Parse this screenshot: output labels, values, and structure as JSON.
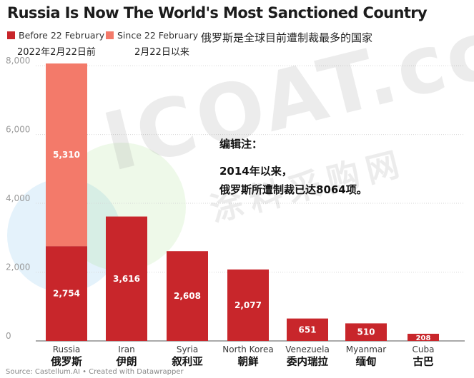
{
  "title": "Russia Is Now The World's Most Sanctioned Country",
  "cn_title": "俄罗斯是全球目前遭制裁最多的国家",
  "legend": [
    {
      "label": "Before 22 February",
      "sublabel": "2022年2月22日前",
      "color": "#c8262b"
    },
    {
      "label": "Since 22 February",
      "sublabel": "2月22日以来",
      "color": "#f37a6a"
    }
  ],
  "note": {
    "heading": "编辑注：",
    "line1": "2014年以来，",
    "line2": "俄罗斯所遭制裁已达8064项。"
  },
  "watermark": {
    "text": "ICOAT.cc",
    "cn": "涂料采购网"
  },
  "source": "Source: Castellum.AI • Created with Datawrapper",
  "chart_data": {
    "type": "bar",
    "stacked": true,
    "categories": [
      "Russia",
      "Iran",
      "Syria",
      "North Korea",
      "Venezuela",
      "Myanmar",
      "Cuba"
    ],
    "categories_cn": [
      "俄罗斯",
      "伊朗",
      "叙利亚",
      "朝鲜",
      "委内瑞拉",
      "缅甸",
      "古巴"
    ],
    "series": [
      {
        "name": "Before 22 February",
        "values": [
          2754,
          3616,
          2608,
          2077,
          651,
          510,
          208
        ],
        "color": "#c8262b"
      },
      {
        "name": "Since 22 February",
        "values": [
          5310,
          0,
          0,
          0,
          0,
          0,
          0
        ],
        "color": "#f37a6a"
      }
    ],
    "data_labels": [
      [
        "2,754",
        "3,616",
        "2,608",
        "2,077",
        "651",
        "510",
        "208"
      ],
      [
        "5,310",
        "",
        "",
        "",
        "",
        "",
        ""
      ]
    ],
    "yticks": [
      0,
      2000,
      4000,
      6000,
      8000
    ],
    "ytick_labels": [
      "0",
      "2,000",
      "4,000",
      "6,000",
      "8,000"
    ],
    "ylim": [
      0,
      8064
    ],
    "grid": true
  }
}
